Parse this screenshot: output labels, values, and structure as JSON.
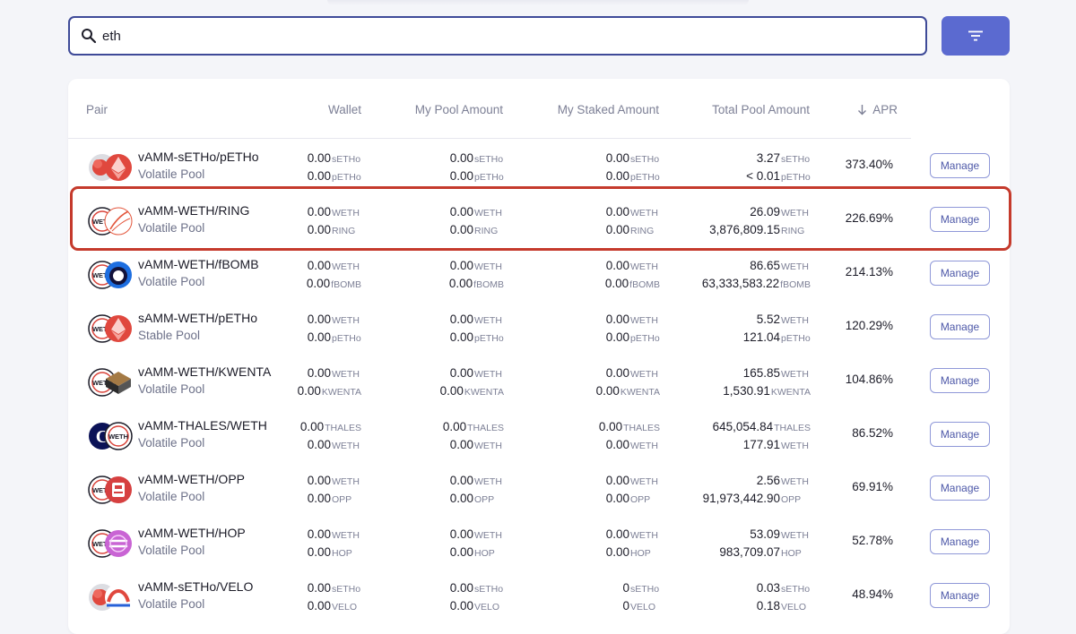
{
  "search": {
    "value": "eth",
    "placeholder": ""
  },
  "filter": {
    "icon": "filter-icon"
  },
  "table": {
    "headers": {
      "pair": "Pair",
      "wallet": "Wallet",
      "my_pool": "My Pool Amount",
      "my_staked": "My Staked Amount",
      "total_pool": "Total Pool Amount",
      "apr": "APR"
    },
    "rows": [
      {
        "name": "vAMM-sETHo/pETHo",
        "type": "Volatile Pool",
        "icons": [
          "seth-icon",
          "peth-icon"
        ],
        "wallet": [
          [
            "0.00",
            "sETHo"
          ],
          [
            "0.00",
            "pETHo"
          ]
        ],
        "pool": [
          [
            "0.00",
            "sETHo"
          ],
          [
            "0.00",
            "pETHo"
          ]
        ],
        "staked": [
          [
            "0.00",
            "sETHo"
          ],
          [
            "0.00",
            "pETHo"
          ]
        ],
        "total": [
          [
            "3.27",
            "sETHo"
          ],
          [
            "< 0.01",
            "pETHo"
          ]
        ],
        "apr": "373.40%",
        "manage": "Manage"
      },
      {
        "name": "vAMM-WETH/RING",
        "type": "Volatile Pool",
        "icons": [
          "weth-icon",
          "ring-icon"
        ],
        "wallet": [
          [
            "0.00",
            "WETH"
          ],
          [
            "0.00",
            "RING"
          ]
        ],
        "pool": [
          [
            "0.00",
            "WETH"
          ],
          [
            "0.00",
            "RING"
          ]
        ],
        "staked": [
          [
            "0.00",
            "WETH"
          ],
          [
            "0.00",
            "RING"
          ]
        ],
        "total": [
          [
            "26.09",
            "WETH"
          ],
          [
            "3,876,809.15",
            "RING"
          ]
        ],
        "apr": "226.69%",
        "manage": "Manage"
      },
      {
        "name": "vAMM-WETH/fBOMB",
        "type": "Volatile Pool",
        "icons": [
          "weth-icon",
          "fbomb-icon"
        ],
        "wallet": [
          [
            "0.00",
            "WETH"
          ],
          [
            "0.00",
            "fBOMB"
          ]
        ],
        "pool": [
          [
            "0.00",
            "WETH"
          ],
          [
            "0.00",
            "fBOMB"
          ]
        ],
        "staked": [
          [
            "0.00",
            "WETH"
          ],
          [
            "0.00",
            "fBOMB"
          ]
        ],
        "total": [
          [
            "86.65",
            "WETH"
          ],
          [
            "63,333,583.22",
            "fBOMB"
          ]
        ],
        "apr": "214.13%",
        "manage": "Manage"
      },
      {
        "name": "sAMM-WETH/pETHo",
        "type": "Stable Pool",
        "icons": [
          "weth-icon",
          "peth-icon"
        ],
        "wallet": [
          [
            "0.00",
            "WETH"
          ],
          [
            "0.00",
            "pETHo"
          ]
        ],
        "pool": [
          [
            "0.00",
            "WETH"
          ],
          [
            "0.00",
            "pETHo"
          ]
        ],
        "staked": [
          [
            "0.00",
            "WETH"
          ],
          [
            "0.00",
            "pETHo"
          ]
        ],
        "total": [
          [
            "5.52",
            "WETH"
          ],
          [
            "121.04",
            "pETHo"
          ]
        ],
        "apr": "120.29%",
        "manage": "Manage"
      },
      {
        "name": "vAMM-WETH/KWENTA",
        "type": "Volatile Pool",
        "icons": [
          "weth-icon",
          "kwenta-icon"
        ],
        "wallet": [
          [
            "0.00",
            "WETH"
          ],
          [
            "0.00",
            "KWENTA"
          ]
        ],
        "pool": [
          [
            "0.00",
            "WETH"
          ],
          [
            "0.00",
            "KWENTA"
          ]
        ],
        "staked": [
          [
            "0.00",
            "WETH"
          ],
          [
            "0.00",
            "KWENTA"
          ]
        ],
        "total": [
          [
            "165.85",
            "WETH"
          ],
          [
            "1,530.91",
            "KWENTA"
          ]
        ],
        "apr": "104.86%",
        "manage": "Manage"
      },
      {
        "name": "vAMM-THALES/WETH",
        "type": "Volatile Pool",
        "icons": [
          "thales-icon",
          "weth-icon"
        ],
        "wallet": [
          [
            "0.00",
            "THALES"
          ],
          [
            "0.00",
            "WETH"
          ]
        ],
        "pool": [
          [
            "0.00",
            "THALES"
          ],
          [
            "0.00",
            "WETH"
          ]
        ],
        "staked": [
          [
            "0.00",
            "THALES"
          ],
          [
            "0.00",
            "WETH"
          ]
        ],
        "total": [
          [
            "645,054.84",
            "THALES"
          ],
          [
            "177.91",
            "WETH"
          ]
        ],
        "apr": "86.52%",
        "manage": "Manage"
      },
      {
        "name": "vAMM-WETH/OPP",
        "type": "Volatile Pool",
        "icons": [
          "weth-icon",
          "opp-icon"
        ],
        "wallet": [
          [
            "0.00",
            "WETH"
          ],
          [
            "0.00",
            "OPP"
          ]
        ],
        "pool": [
          [
            "0.00",
            "WETH"
          ],
          [
            "0.00",
            "OPP"
          ]
        ],
        "staked": [
          [
            "0.00",
            "WETH"
          ],
          [
            "0.00",
            "OPP"
          ]
        ],
        "total": [
          [
            "2.56",
            "WETH"
          ],
          [
            "91,973,442.90",
            "OPP"
          ]
        ],
        "apr": "69.91%",
        "manage": "Manage"
      },
      {
        "name": "vAMM-WETH/HOP",
        "type": "Volatile Pool",
        "icons": [
          "weth-icon",
          "hop-icon"
        ],
        "wallet": [
          [
            "0.00",
            "WETH"
          ],
          [
            "0.00",
            "HOP"
          ]
        ],
        "pool": [
          [
            "0.00",
            "WETH"
          ],
          [
            "0.00",
            "HOP"
          ]
        ],
        "staked": [
          [
            "0.00",
            "WETH"
          ],
          [
            "0.00",
            "HOP"
          ]
        ],
        "total": [
          [
            "53.09",
            "WETH"
          ],
          [
            "983,709.07",
            "HOP"
          ]
        ],
        "apr": "52.78%",
        "manage": "Manage"
      },
      {
        "name": "vAMM-sETHo/VELO",
        "type": "Volatile Pool",
        "icons": [
          "seth-icon",
          "velo-icon"
        ],
        "wallet": [
          [
            "0.00",
            "sETHo"
          ],
          [
            "0.00",
            "VELO"
          ]
        ],
        "pool": [
          [
            "0.00",
            "sETHo"
          ],
          [
            "0.00",
            "VELO"
          ]
        ],
        "staked": [
          [
            "0",
            "sETHo"
          ],
          [
            "0",
            "VELO"
          ]
        ],
        "total": [
          [
            "0.03",
            "sETHo"
          ],
          [
            "0.18",
            "VELO"
          ]
        ],
        "apr": "48.94%",
        "manage": "Manage"
      }
    ]
  },
  "colors": {
    "accent": "#5b6ad0",
    "search_border": "#3e4a98",
    "highlight": "#c53a2c",
    "muted_text": "#7d8096"
  }
}
